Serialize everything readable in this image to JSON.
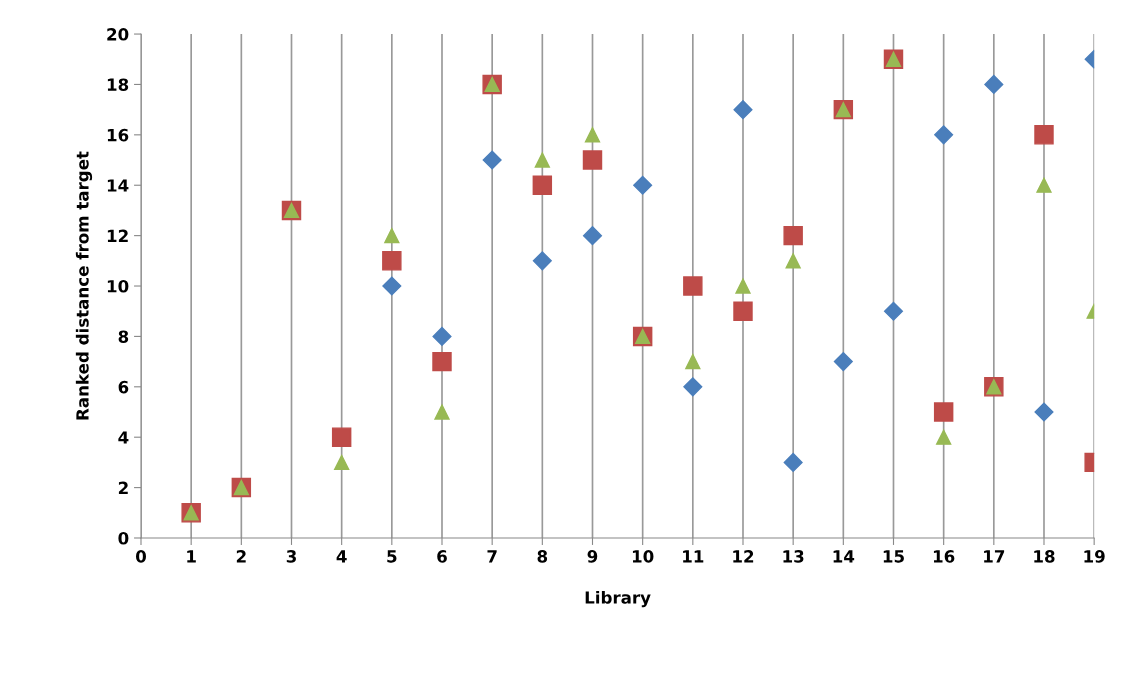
{
  "chart_data": {
    "type": "scatter",
    "xlabel": "Library",
    "ylabel": "Ranked distance from target",
    "x": [
      1,
      2,
      3,
      4,
      5,
      6,
      7,
      8,
      9,
      10,
      11,
      12,
      13,
      14,
      15,
      16,
      17,
      18,
      19
    ],
    "series": [
      {
        "color": "#4a7ebb",
        "marker": "diamond",
        "values": [
          null,
          null,
          null,
          null,
          10,
          8,
          15,
          11,
          12,
          14,
          6,
          17,
          3,
          7,
          9,
          16,
          18,
          5,
          19
        ]
      },
      {
        "color": "#be4b48",
        "marker": "square",
        "values": [
          1,
          2,
          13,
          4,
          11,
          7,
          18,
          14,
          15,
          8,
          10,
          9,
          12,
          17,
          19,
          5,
          6,
          16,
          3
        ]
      },
      {
        "color": "#98b954",
        "marker": "triangle",
        "values": [
          1,
          2,
          13,
          3,
          12,
          5,
          18,
          15,
          16,
          8,
          7,
          10,
          11,
          17,
          19,
          4,
          6,
          14,
          9
        ]
      }
    ],
    "xlim": [
      0,
      19
    ],
    "xticks": [
      0,
      1,
      2,
      3,
      4,
      5,
      6,
      7,
      8,
      9,
      10,
      11,
      12,
      13,
      14,
      15,
      16,
      17,
      18,
      19
    ],
    "ylim": [
      0,
      20
    ],
    "yticks": [
      0,
      2,
      4,
      6,
      8,
      10,
      12,
      14,
      16,
      18,
      20
    ],
    "grid": "x",
    "legend": false
  }
}
